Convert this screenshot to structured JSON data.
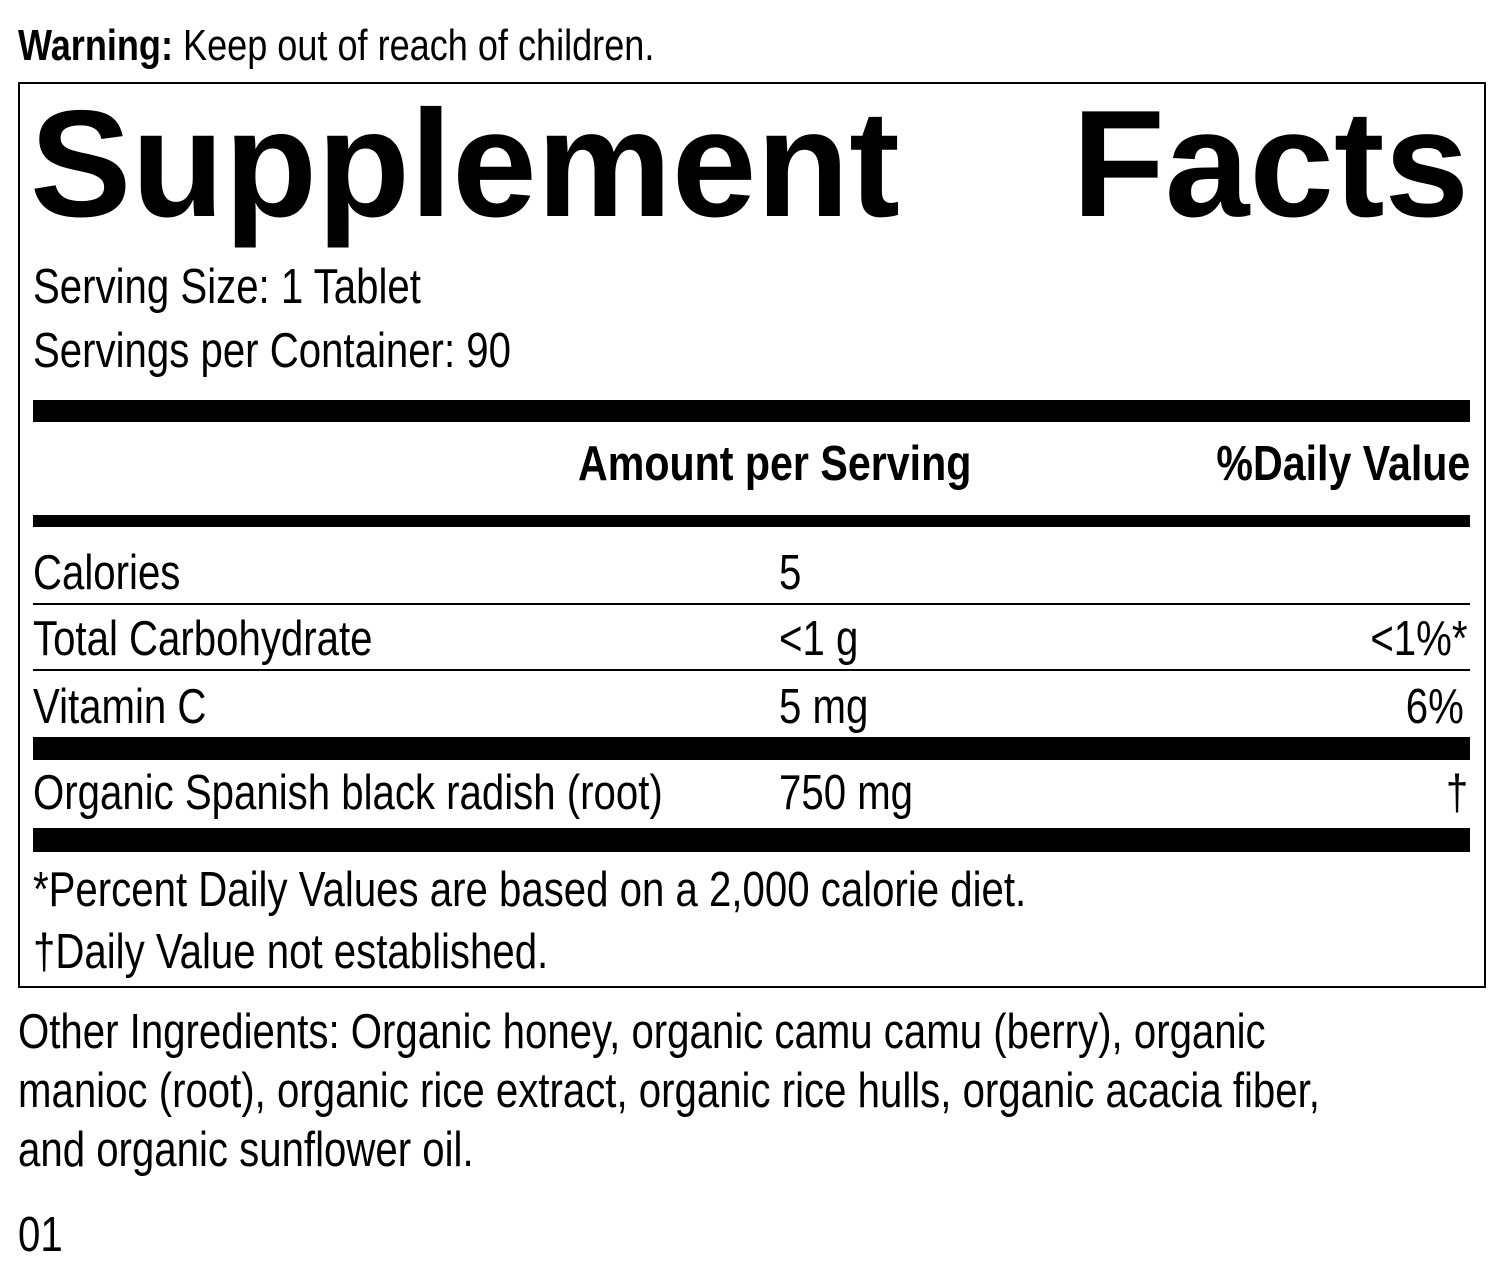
{
  "warning": {
    "label": "Warning:",
    "text": " Keep out of reach of children."
  },
  "title": {
    "word1": "Supplement",
    "word2": "Facts"
  },
  "serving_size": "Serving Size: 1 Tablet",
  "servings_per_container": "Servings per Container: 90",
  "headers": {
    "amount": "Amount per Serving",
    "dv": "%Daily Value"
  },
  "rows": [
    {
      "name": "Calories",
      "amount": "5",
      "dv": ""
    },
    {
      "name": "Total Carbohydrate",
      "amount": "<1 g",
      "dv": "<1%*"
    },
    {
      "name": "Vitamin C",
      "amount": "5 mg",
      "dv": "6%"
    },
    {
      "name": "Organic Spanish black radish (root)",
      "amount": "750 mg",
      "dv": "†"
    }
  ],
  "footnotes": [
    "*Percent Daily Values are based on a 2,000 calorie diet.",
    "†Daily Value not established."
  ],
  "other_ingredients": [
    "Other Ingredients: Organic honey, organic camu camu (berry), organic",
    "manioc (root), organic rice extract, organic rice hulls, organic acacia fiber,",
    "and organic sunflower oil."
  ],
  "code": "01"
}
